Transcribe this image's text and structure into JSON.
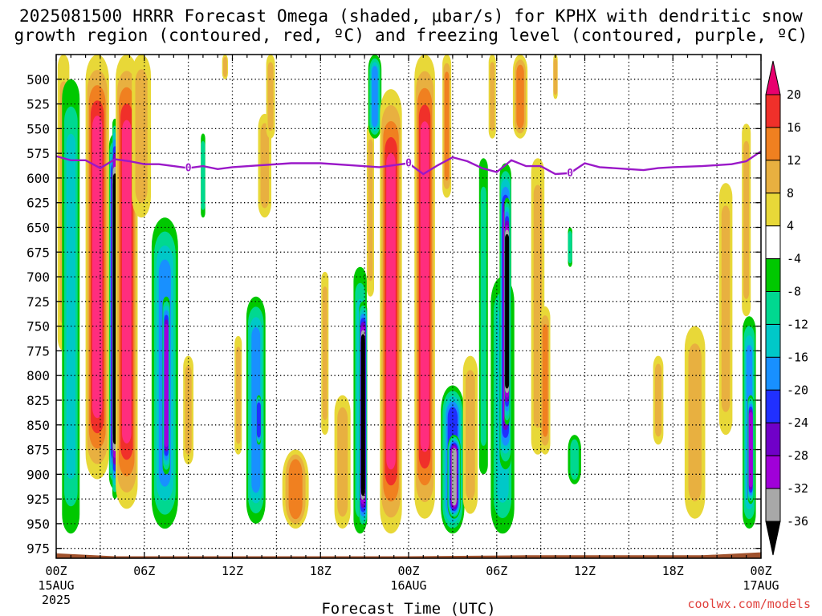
{
  "title": "2025081500 HRRR Forecast Omega (shaded, μbar/s) for KPHX with dendritic snow growth region (contoured, red, ºC) and freezing level (contoured, purple, ºC)",
  "credit": "coolwx.com/models",
  "chart_data": {
    "type": "heatmap",
    "title": "2025081500 HRRR Forecast Omega (shaded, μbar/s) for KPHX with dendritic snow growth region (contoured, red, ºC) and freezing level (contoured, purple, ºC)",
    "xlabel": "Forecast Time (UTC)",
    "ylabel": "",
    "x_range_hours": [
      0,
      48
    ],
    "y_range_hpa": [
      475,
      985
    ],
    "y_scale": "pressure, inverted",
    "grid": true,
    "x_ticks": [
      {
        "hour": 0,
        "label": "00Z",
        "sub": "15AUG",
        "sub2": "2025"
      },
      {
        "hour": 6,
        "label": "06Z"
      },
      {
        "hour": 12,
        "label": "12Z"
      },
      {
        "hour": 18,
        "label": "18Z"
      },
      {
        "hour": 24,
        "label": "00Z",
        "sub": "16AUG"
      },
      {
        "hour": 30,
        "label": "06Z"
      },
      {
        "hour": 36,
        "label": "12Z"
      },
      {
        "hour": 42,
        "label": "18Z"
      },
      {
        "hour": 48,
        "label": "00Z",
        "sub": "17AUG"
      }
    ],
    "y_ticks": [
      500,
      525,
      550,
      575,
      600,
      625,
      650,
      675,
      700,
      725,
      750,
      775,
      800,
      825,
      850,
      875,
      900,
      925,
      950,
      975
    ],
    "colorbar": {
      "labels": [
        "20",
        "16",
        "12",
        "8",
        "4",
        "-4",
        "-8",
        "-12",
        "-16",
        "-20",
        "-24",
        "-28",
        "-32",
        "-36"
      ],
      "colors": [
        "#ff2d7e",
        "#f0302a",
        "#f08020",
        "#e8b040",
        "#e8d838",
        "#ffffff",
        "#00c800",
        "#00d890",
        "#00c8c8",
        "#1890ff",
        "#2030ff",
        "#7000c8",
        "#a000d8",
        "#a8a8a8",
        "#000000"
      ],
      "top_arrow_color": "#e8006e",
      "bottom_arrow_color": "#000000"
    },
    "freezing_level": {
      "label": "0",
      "label_hours": [
        9,
        24,
        35
      ],
      "points": [
        [
          0,
          578
        ],
        [
          1,
          582
        ],
        [
          2,
          582
        ],
        [
          3,
          590
        ],
        [
          4,
          581
        ],
        [
          5,
          583
        ],
        [
          6,
          586
        ],
        [
          7,
          586
        ],
        [
          8,
          588
        ],
        [
          9,
          590
        ],
        [
          10,
          588
        ],
        [
          11,
          591
        ],
        [
          12,
          589
        ],
        [
          14,
          587
        ],
        [
          16,
          585
        ],
        [
          18,
          585
        ],
        [
          20,
          587
        ],
        [
          22,
          589
        ],
        [
          24,
          585
        ],
        [
          25,
          596
        ],
        [
          26,
          587
        ],
        [
          27,
          579
        ],
        [
          28,
          583
        ],
        [
          29,
          590
        ],
        [
          30,
          594
        ],
        [
          31,
          582
        ],
        [
          32,
          588
        ],
        [
          33,
          588
        ],
        [
          34,
          596
        ],
        [
          35,
          595
        ],
        [
          36,
          585
        ],
        [
          37,
          589
        ],
        [
          40,
          592
        ],
        [
          41,
          590
        ],
        [
          42,
          589
        ],
        [
          44,
          588
        ],
        [
          46,
          586
        ],
        [
          47,
          583
        ],
        [
          48,
          573
        ]
      ]
    },
    "omega_features": [
      {
        "t": 0.5,
        "p0": 475,
        "p1": 775,
        "w": 0.8,
        "v": 8
      },
      {
        "t": 0.8,
        "p0": 500,
        "p1": 740,
        "w": 0.35,
        "v": 12
      },
      {
        "t": 1.0,
        "p0": 500,
        "p1": 960,
        "w": 1.2,
        "v": -12
      },
      {
        "t": 2.8,
        "p0": 475,
        "p1": 905,
        "w": 1.6,
        "v": 20
      },
      {
        "t": 4.0,
        "p0": 555,
        "p1": 915,
        "w": 0.8,
        "v": -36
      },
      {
        "t": 4.0,
        "p0": 540,
        "p1": 925,
        "w": 0.35,
        "v": -40
      },
      {
        "t": 4.8,
        "p0": 475,
        "p1": 935,
        "w": 1.5,
        "v": 20
      },
      {
        "t": 5.8,
        "p0": 475,
        "p1": 640,
        "w": 1.3,
        "v": 8
      },
      {
        "t": 7.4,
        "p0": 640,
        "p1": 955,
        "w": 1.8,
        "v": -16
      },
      {
        "t": 7.5,
        "p0": 720,
        "p1": 900,
        "w": 0.5,
        "v": -28
      },
      {
        "t": 9.0,
        "p0": 780,
        "p1": 890,
        "w": 0.7,
        "v": 8
      },
      {
        "t": 10.0,
        "p0": 555,
        "p1": 640,
        "w": 0.3,
        "v": -8
      },
      {
        "t": 11.5,
        "p0": 475,
        "p1": 500,
        "w": 0.4,
        "v": 8
      },
      {
        "t": 12.4,
        "p0": 760,
        "p1": 880,
        "w": 0.5,
        "v": 8
      },
      {
        "t": 13.6,
        "p0": 720,
        "p1": 950,
        "w": 1.3,
        "v": -16
      },
      {
        "t": 13.8,
        "p0": 820,
        "p1": 870,
        "w": 0.3,
        "v": -20
      },
      {
        "t": 14.2,
        "p0": 535,
        "p1": 640,
        "w": 0.9,
        "v": 8
      },
      {
        "t": 14.6,
        "p0": 475,
        "p1": 560,
        "w": 0.6,
        "v": 8
      },
      {
        "t": 16.3,
        "p0": 875,
        "p1": 955,
        "w": 1.8,
        "v": 12
      },
      {
        "t": 18.3,
        "p0": 695,
        "p1": 860,
        "w": 0.5,
        "v": 8
      },
      {
        "t": 19.5,
        "p0": 820,
        "p1": 955,
        "w": 1.1,
        "v": 8
      },
      {
        "t": 20.7,
        "p0": 690,
        "p1": 960,
        "w": 0.9,
        "v": -12
      },
      {
        "t": 20.9,
        "p0": 725,
        "p1": 955,
        "w": 0.55,
        "v": -40
      },
      {
        "t": 21.4,
        "p0": 545,
        "p1": 720,
        "w": 0.5,
        "v": 8
      },
      {
        "t": 21.7,
        "p0": 475,
        "p1": 560,
        "w": 0.9,
        "v": -16
      },
      {
        "t": 22.8,
        "p0": 510,
        "p1": 960,
        "w": 1.5,
        "v": 20
      },
      {
        "t": 25.1,
        "p0": 475,
        "p1": 945,
        "w": 1.4,
        "v": 20
      },
      {
        "t": 26.6,
        "p0": 475,
        "p1": 620,
        "w": 0.6,
        "v": 12
      },
      {
        "t": 27.0,
        "p0": 810,
        "p1": 960,
        "w": 1.6,
        "v": -20
      },
      {
        "t": 27.1,
        "p0": 860,
        "p1": 945,
        "w": 0.9,
        "v": -32
      },
      {
        "t": 28.2,
        "p0": 780,
        "p1": 940,
        "w": 1.0,
        "v": 8
      },
      {
        "t": 29.1,
        "p0": 580,
        "p1": 900,
        "w": 0.6,
        "v": -8
      },
      {
        "t": 29.7,
        "p0": 475,
        "p1": 560,
        "w": 0.5,
        "v": 8
      },
      {
        "t": 30.4,
        "p0": 700,
        "p1": 960,
        "w": 1.6,
        "v": -12
      },
      {
        "t": 30.6,
        "p0": 585,
        "p1": 895,
        "w": 0.8,
        "v": -28
      },
      {
        "t": 30.7,
        "p0": 620,
        "p1": 850,
        "w": 0.35,
        "v": -36
      },
      {
        "t": 31.6,
        "p0": 475,
        "p1": 560,
        "w": 1.0,
        "v": 12
      },
      {
        "t": 32.8,
        "p0": 580,
        "p1": 880,
        "w": 0.9,
        "v": 8
      },
      {
        "t": 34.0,
        "p0": 475,
        "p1": 520,
        "w": 0.3,
        "v": 8
      },
      {
        "t": 33.3,
        "p0": 730,
        "p1": 880,
        "w": 0.7,
        "v": 12
      },
      {
        "t": 35.3,
        "p0": 860,
        "p1": 910,
        "w": 0.9,
        "v": -8
      },
      {
        "t": 35.0,
        "p0": 650,
        "p1": 690,
        "w": 0.3,
        "v": -8
      },
      {
        "t": 41.0,
        "p0": 780,
        "p1": 870,
        "w": 0.7,
        "v": 8
      },
      {
        "t": 43.5,
        "p0": 750,
        "p1": 945,
        "w": 1.4,
        "v": 8
      },
      {
        "t": 45.6,
        "p0": 605,
        "p1": 860,
        "w": 0.9,
        "v": 8
      },
      {
        "t": 47.0,
        "p0": 545,
        "p1": 740,
        "w": 0.6,
        "v": 8
      },
      {
        "t": 47.2,
        "p0": 740,
        "p1": 955,
        "w": 0.9,
        "v": -16
      },
      {
        "t": 47.3,
        "p0": 820,
        "p1": 930,
        "w": 0.4,
        "v": -28
      }
    ]
  }
}
